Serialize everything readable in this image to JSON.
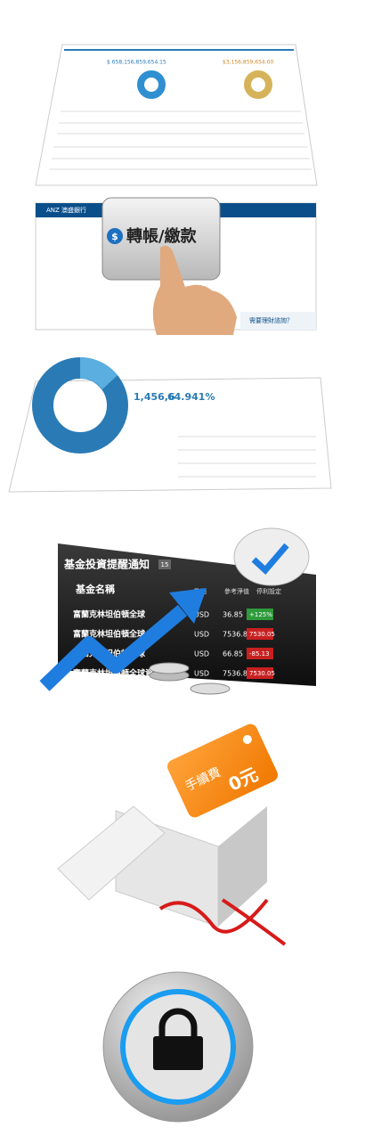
{
  "dashboard": {
    "total_assets": "$ 658,156,859,654.15",
    "total_liabilities": "$3,156,859,654.00"
  },
  "transfer": {
    "bank": "ANZ 澳盛銀行",
    "button": "轉帳/繳款",
    "help": "需要理財諮詢？"
  },
  "summary": {
    "value": "1,456,6",
    "rate": "64.941%"
  },
  "fund_notice": {
    "title": "基金投資提醒通知",
    "count": "15",
    "column_name": "基金名稱",
    "columns": [
      "幣別",
      "參考淨值",
      "停利設定"
    ],
    "rows": [
      [
        "富蘭克林坦伯頓全球",
        "USD",
        "36.85",
        "+125%"
      ],
      [
        "富蘭克林坦伯頓全球",
        "USD",
        "7536.85",
        "7530.05"
      ],
      [
        "富蘭克林坦伯頓全球",
        "USD",
        "66.85",
        "-85.13"
      ],
      [
        "富蘭克林坦伯頓全球資源",
        "USD",
        "7536.85",
        "7530.05"
      ]
    ]
  },
  "fee": {
    "label": "手續費",
    "value": "0元"
  }
}
